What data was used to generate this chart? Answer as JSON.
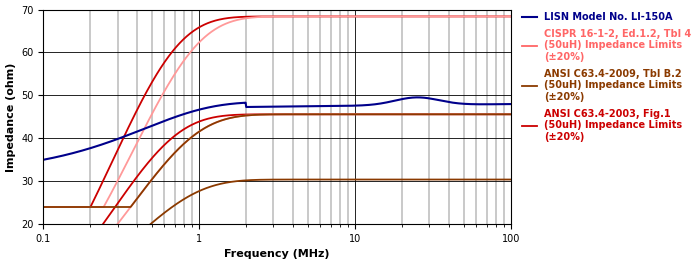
{
  "xlabel": "Frequency (MHz)",
  "ylabel": "Impedance (ohm)",
  "ylim": [
    20,
    70
  ],
  "xlim": [
    0.1,
    100
  ],
  "yticks": [
    20,
    30,
    40,
    50,
    60,
    70
  ],
  "background_color": "#ffffff",
  "lisn_color": "#00008B",
  "cispr_color": "#FF9999",
  "ansi2009_color": "#8B3A00",
  "ansi2003_color": "#CC0000",
  "legend_labels": [
    "LISN Model No. LI-150A",
    "CISPR 16-1-2, Ed.1.2, Tbl 4\n(50uH) Impedance Limits\n(±20%)",
    "ANSI C63.4-2009, Tbl B.2\n(50uH) Impedance Limits\n(±20%)",
    "ANSI C63.4-2003, Fig.1\n(50uH) Impedance Limits\n(±20%)"
  ],
  "legend_colors": [
    "#00008B",
    "#FF6666",
    "#8B3A00",
    "#CC0000"
  ],
  "legend_fontsize": 7,
  "axis_fontsize": 8,
  "tick_fontsize": 7
}
